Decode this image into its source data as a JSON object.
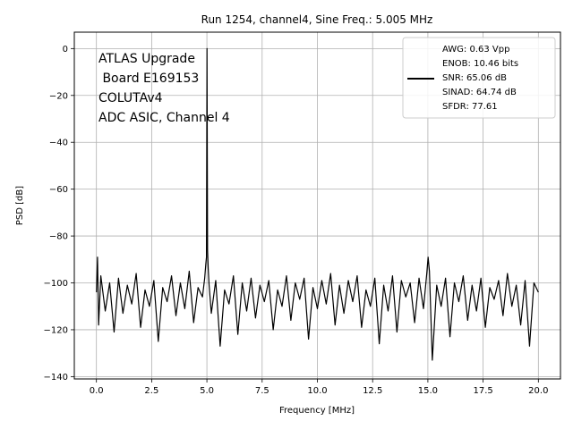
{
  "chart_data": {
    "type": "line",
    "title": "Run 1254, channel4, Sine Freq.: 5.005 MHz",
    "xlabel": "Frequency [MHz]",
    "ylabel": "PSD [dB]",
    "xlim": [
      -1.0,
      21.0
    ],
    "ylim": [
      -141,
      7
    ],
    "xticks": [
      0.0,
      2.5,
      5.0,
      7.5,
      10.0,
      12.5,
      15.0,
      17.5,
      20.0
    ],
    "xtick_labels": [
      "0.0",
      "2.5",
      "5.0",
      "7.5",
      "10.0",
      "12.5",
      "15.0",
      "17.5",
      "20.0"
    ],
    "yticks": [
      0,
      -20,
      -40,
      -60,
      -80,
      -100,
      -120,
      -140
    ],
    "ytick_labels": [
      "0",
      "−20",
      "−40",
      "−60",
      "−80",
      "−100",
      "−120",
      "−140"
    ],
    "grid": true,
    "line_color": "#000000",
    "annotation": [
      "ATLAS Upgrade",
      " Board E169153",
      "COLUTAv4",
      "ADC ASIC, Channel 4"
    ],
    "legend": {
      "position": "top-right",
      "lines": [
        "AWG: 0.63 Vpp",
        "ENOB: 10.46 bits",
        "SNR: 65.06 dB",
        "SINAD: 64.74 dB",
        "SFDR: 77.61"
      ]
    },
    "series": [
      {
        "x": [
          0.0,
          0.05,
          0.1,
          0.2,
          0.4,
          0.6,
          0.8,
          1.0,
          1.2,
          1.4,
          1.6,
          1.8,
          2.0,
          2.2,
          2.4,
          2.6,
          2.8,
          3.0,
          3.2,
          3.4,
          3.6,
          3.8,
          4.0,
          4.2,
          4.4,
          4.6,
          4.8,
          4.9,
          4.95,
          4.98,
          5.005,
          5.03,
          5.06,
          5.1,
          5.2,
          5.4,
          5.6,
          5.8,
          6.0,
          6.2,
          6.4,
          6.6,
          6.8,
          7.0,
          7.2,
          7.4,
          7.6,
          7.8,
          8.0,
          8.2,
          8.4,
          8.6,
          8.8,
          9.0,
          9.2,
          9.4,
          9.6,
          9.8,
          10.0,
          10.2,
          10.4,
          10.6,
          10.8,
          11.0,
          11.2,
          11.4,
          11.6,
          11.8,
          12.0,
          12.2,
          12.4,
          12.6,
          12.8,
          13.0,
          13.2,
          13.4,
          13.6,
          13.8,
          14.0,
          14.2,
          14.4,
          14.6,
          14.8,
          14.95,
          15.01,
          15.07,
          15.2,
          15.4,
          15.6,
          15.8,
          16.0,
          16.2,
          16.4,
          16.6,
          16.8,
          17.0,
          17.2,
          17.4,
          17.6,
          17.8,
          18.0,
          18.2,
          18.4,
          18.6,
          18.8,
          19.0,
          19.2,
          19.4,
          19.6,
          19.8,
          20.0
        ],
        "y": [
          -104,
          -89,
          -118,
          -97,
          -112,
          -100,
          -121,
          -98,
          -113,
          -101,
          -109,
          -96,
          -119,
          -103,
          -110,
          -99,
          -125,
          -102,
          -108,
          -97,
          -114,
          -100,
          -111,
          -95,
          -117,
          -102,
          -106,
          -98,
          -92,
          -89,
          0,
          -86,
          -94,
          -101,
          -113,
          -99,
          -127,
          -103,
          -109,
          -97,
          -122,
          -100,
          -112,
          -98,
          -115,
          -101,
          -108,
          -99,
          -120,
          -103,
          -110,
          -97,
          -116,
          -100,
          -107,
          -98,
          -124,
          -102,
          -111,
          -99,
          -109,
          -96,
          -118,
          -101,
          -113,
          -99,
          -108,
          -97,
          -119,
          -103,
          -110,
          -98,
          -126,
          -101,
          -112,
          -97,
          -121,
          -99,
          -106,
          -100,
          -117,
          -98,
          -111,
          -96,
          -89,
          -95,
          -133,
          -101,
          -110,
          -98,
          -123,
          -100,
          -108,
          -97,
          -116,
          -101,
          -112,
          -98,
          -119,
          -102,
          -107,
          -99,
          -114,
          -96,
          -110,
          -101,
          -118,
          -99,
          -127,
          -100,
          -104
        ]
      }
    ]
  }
}
